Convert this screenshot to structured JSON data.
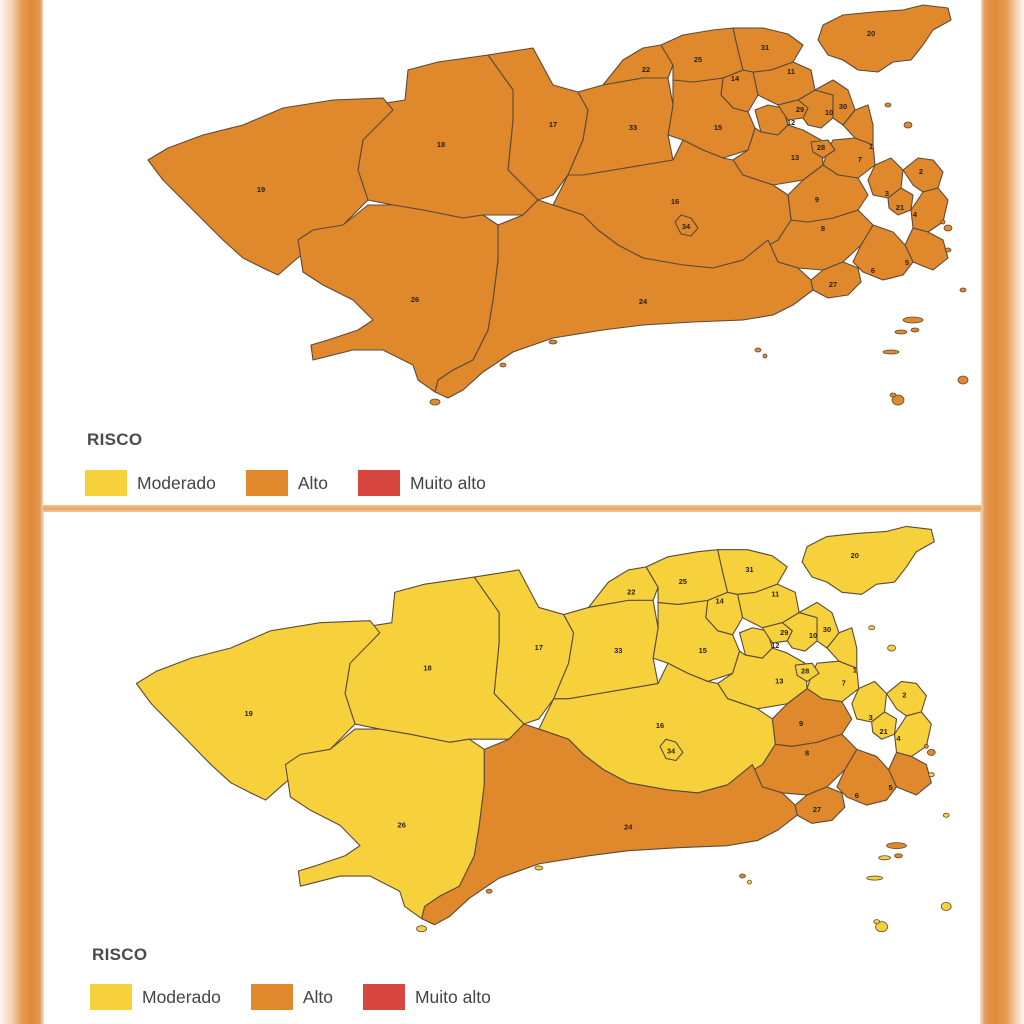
{
  "legend": {
    "title": "RISCO",
    "items": [
      {
        "label": "Moderado",
        "color": "#f6d13c"
      },
      {
        "label": "Alto",
        "color": "#e0882c"
      },
      {
        "label": "Muito alto",
        "color": "#d8473f"
      }
    ]
  },
  "region_numbers": [
    "1",
    "2",
    "3",
    "4",
    "5",
    "6",
    "7",
    "8",
    "9",
    "10",
    "11",
    "12",
    "13",
    "14",
    "15",
    "16",
    "17",
    "18",
    "19",
    "20",
    "21",
    "22",
    "23",
    "24",
    "25",
    "26",
    "27",
    "28",
    "29",
    "30",
    "31",
    "33",
    "34"
  ],
  "maps": [
    {
      "name": "top",
      "all_regions_risk": "Alto"
    },
    {
      "name": "bottom",
      "alto_regions": [
        "5",
        "6",
        "8",
        "9",
        "24",
        "27"
      ],
      "moderado_regions": [
        "1",
        "2",
        "3",
        "4",
        "7",
        "10",
        "11",
        "12",
        "13",
        "14",
        "15",
        "16",
        "17",
        "18",
        "19",
        "20",
        "21",
        "22",
        "23",
        "25",
        "26",
        "28",
        "29",
        "30",
        "31",
        "33",
        "34"
      ]
    }
  ],
  "colors": {
    "moderado": "#f6d13c",
    "alto": "#e0882c",
    "border": "#5b4a3a"
  }
}
